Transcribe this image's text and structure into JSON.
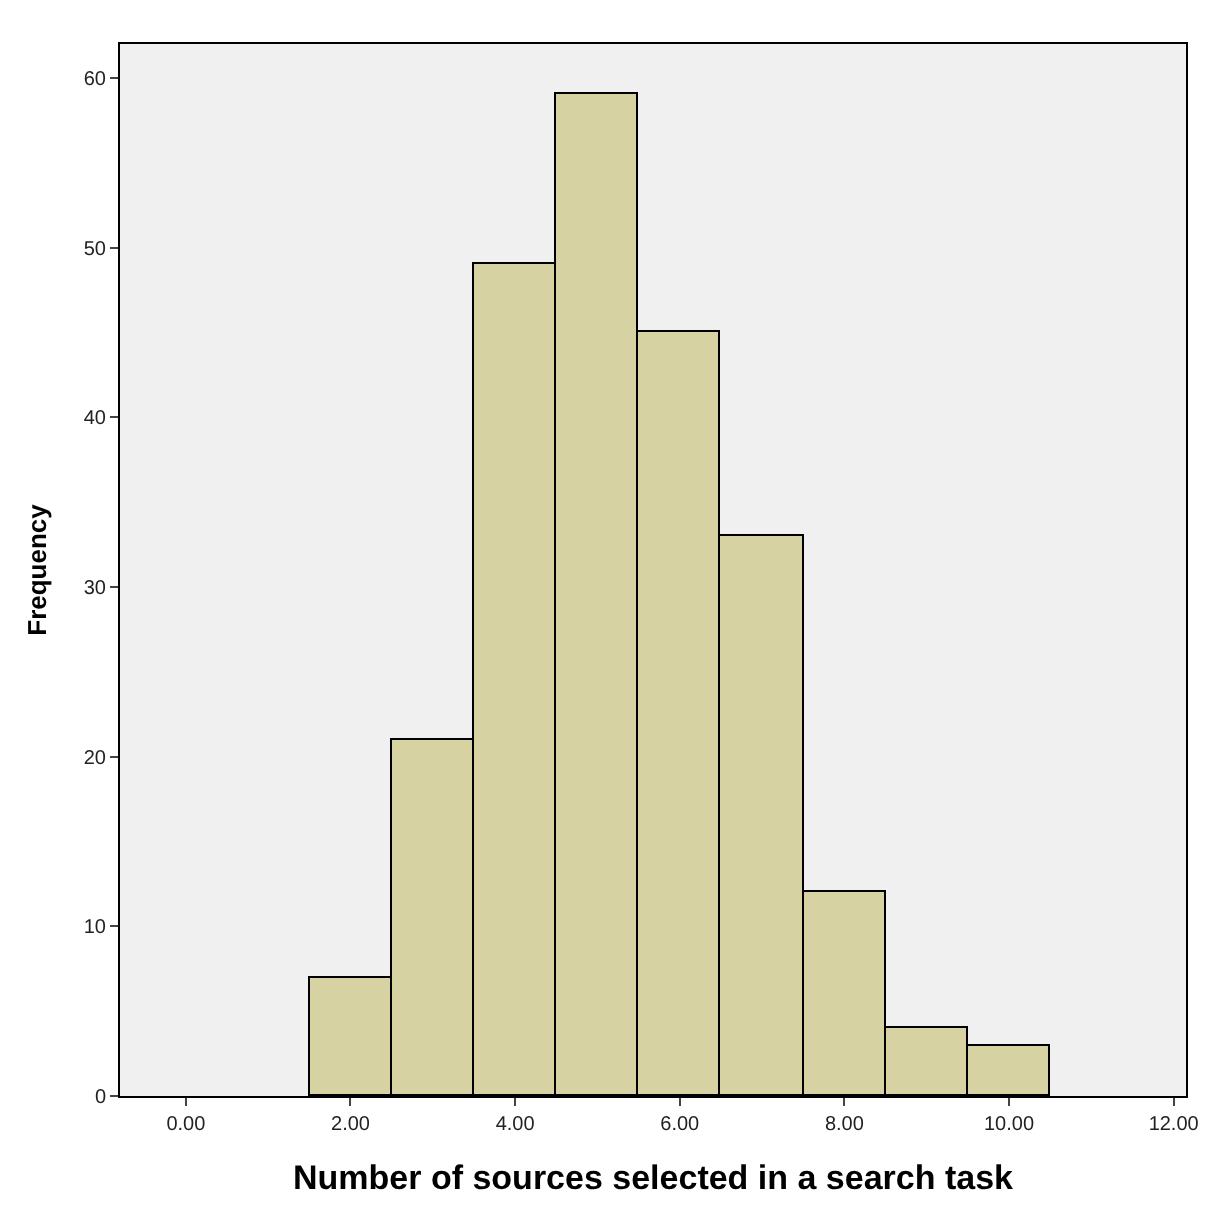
{
  "chart_data": {
    "type": "histogram",
    "xlabel": "Number of sources selected in a search task",
    "ylabel": "Frequency",
    "bins": [
      1.5,
      2.5,
      3.5,
      4.5,
      5.5,
      6.5,
      7.5,
      8.5,
      9.5,
      10.5
    ],
    "values": [
      7,
      21,
      49,
      59,
      45,
      33,
      12,
      4,
      3
    ],
    "color": "#d6d2a2",
    "xlim": [
      -0.8,
      12.15
    ],
    "ylim": [
      0,
      62
    ],
    "xticks": [
      {
        "value": 0,
        "label": "0.00"
      },
      {
        "value": 2,
        "label": "2.00"
      },
      {
        "value": 4,
        "label": "4.00"
      },
      {
        "value": 6,
        "label": "6.00"
      },
      {
        "value": 8,
        "label": "8.00"
      },
      {
        "value": 10,
        "label": "10.00"
      },
      {
        "value": 12,
        "label": "12.00"
      }
    ],
    "yticks": [
      0,
      10,
      20,
      30,
      40,
      50,
      60
    ],
    "grid": false
  }
}
